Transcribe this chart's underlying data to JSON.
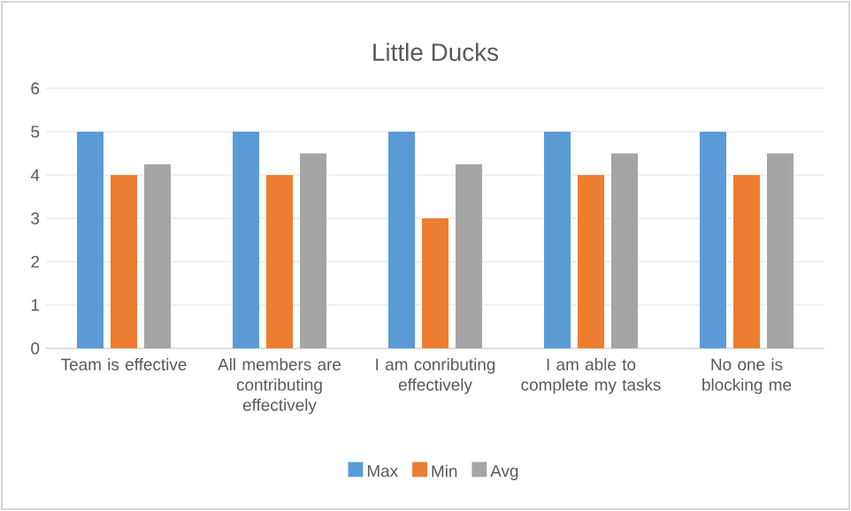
{
  "chart_data": {
    "type": "bar",
    "title": "Little Ducks",
    "categories": [
      "Team is effective",
      "All members are contributing effectively",
      "I am conributing effectively",
      "I am able to complete my tasks",
      "No one is blocking me"
    ],
    "series": [
      {
        "name": "Max",
        "color": "#5b9bd5",
        "values": [
          5,
          5,
          5,
          5,
          5
        ]
      },
      {
        "name": "Min",
        "color": "#ed7d31",
        "values": [
          4,
          4,
          3,
          4,
          4
        ]
      },
      {
        "name": "Avg",
        "color": "#a5a5a5",
        "values": [
          4.25,
          4.5,
          4.25,
          4.5,
          4.5
        ]
      }
    ],
    "ylim": [
      0,
      6
    ],
    "yticks": [
      0,
      1,
      2,
      3,
      4,
      5,
      6
    ],
    "grid": "y",
    "legend": "bottom"
  }
}
